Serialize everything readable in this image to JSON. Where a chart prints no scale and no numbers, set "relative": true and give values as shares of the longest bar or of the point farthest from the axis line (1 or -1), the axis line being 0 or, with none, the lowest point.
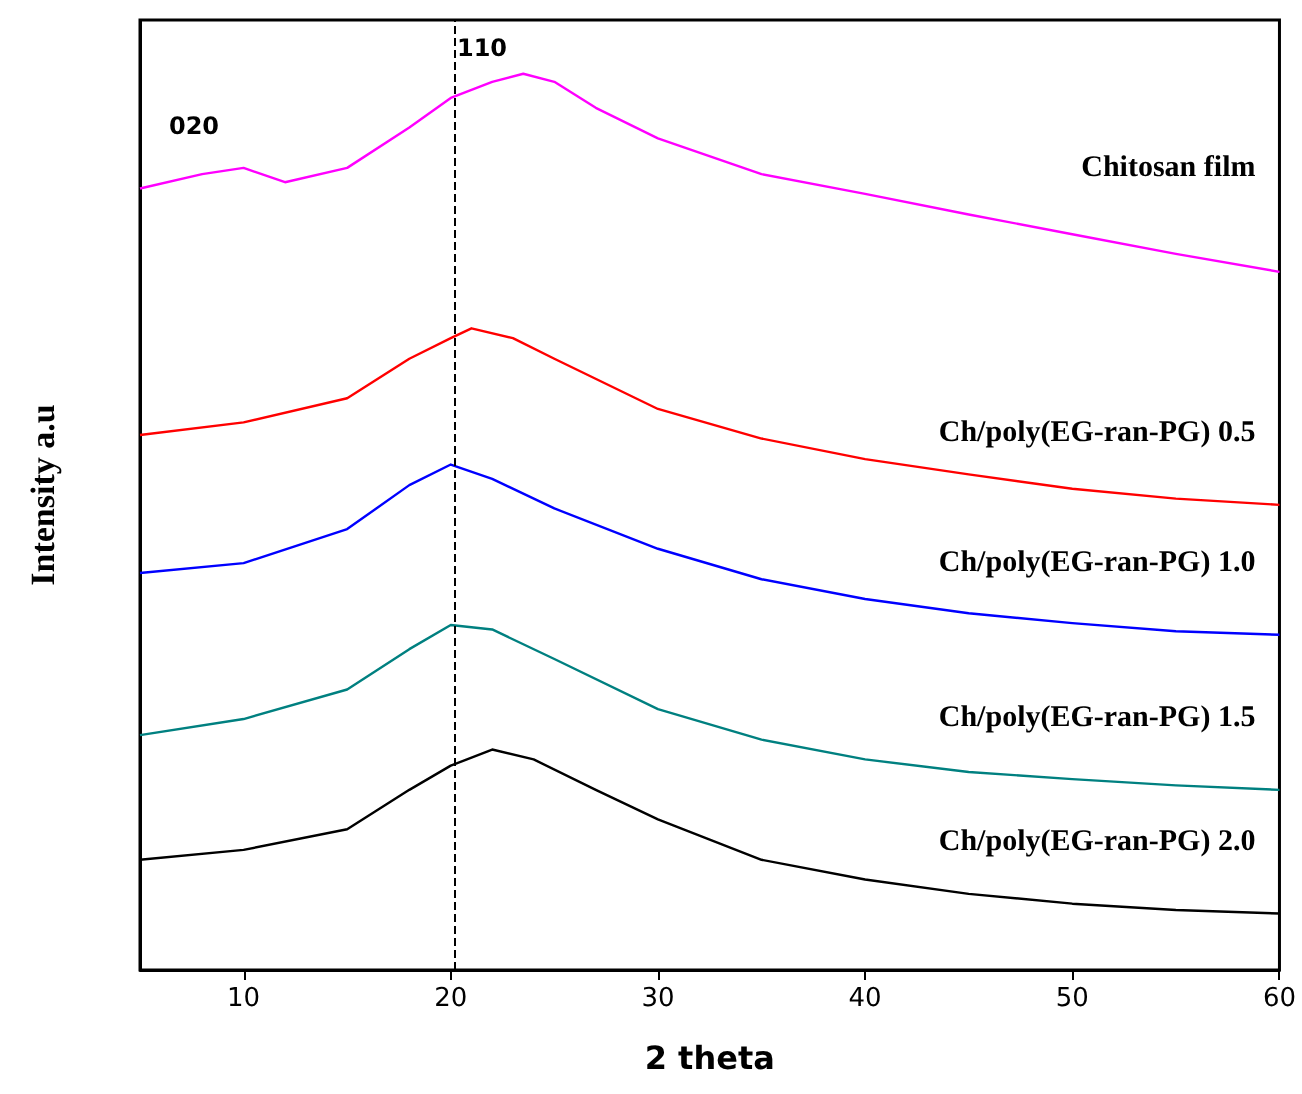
{
  "chart_data": {
    "type": "line",
    "relative": true,
    "xlabel": "2 theta",
    "ylabel": "Intensity a.u",
    "xlim": [
      5,
      60
    ],
    "xticks": [
      10,
      20,
      30,
      40,
      50,
      60
    ],
    "tick_labels": "x",
    "grid": false,
    "marker": "none",
    "line_style": "solid",
    "series": [
      {
        "name": "Chitosan film",
        "color": "#ff00ff",
        "x": [
          5,
          8,
          10,
          12,
          15,
          18,
          20,
          22,
          23.5,
          25,
          27,
          30,
          35,
          40,
          45,
          50,
          55,
          60
        ],
        "values": [
          0.872,
          0.888,
          0.895,
          0.879,
          0.895,
          0.94,
          0.973,
          0.991,
          1.0,
          0.991,
          0.962,
          0.928,
          0.888,
          0.866,
          0.843,
          0.821,
          0.799,
          0.779
        ]
      },
      {
        "name": "Ch/poly(EG-ran-PG) 0.5",
        "color": "#ff0000",
        "x": [
          5,
          10,
          15,
          18,
          20,
          21,
          23,
          25,
          30,
          35,
          40,
          45,
          50,
          55,
          60
        ],
        "values": [
          0.597,
          0.611,
          0.638,
          0.682,
          0.705,
          0.716,
          0.705,
          0.682,
          0.626,
          0.593,
          0.57,
          0.553,
          0.537,
          0.526,
          0.519
        ]
      },
      {
        "name": "Ch/poly(EG-ran-PG) 1.0",
        "color": "#0000ff",
        "x": [
          5,
          10,
          15,
          18,
          20,
          22,
          25,
          30,
          35,
          40,
          45,
          50,
          55,
          60
        ],
        "values": [
          0.443,
          0.454,
          0.492,
          0.541,
          0.564,
          0.548,
          0.515,
          0.47,
          0.436,
          0.414,
          0.398,
          0.387,
          0.378,
          0.374
        ]
      },
      {
        "name": "Ch/poly(EG-ran-PG) 1.5",
        "color": "#008080",
        "x": [
          5,
          10,
          15,
          18,
          20,
          22,
          25,
          30,
          35,
          40,
          45,
          50,
          55,
          60
        ],
        "values": [
          0.262,
          0.28,
          0.313,
          0.358,
          0.385,
          0.38,
          0.347,
          0.291,
          0.257,
          0.235,
          0.221,
          0.213,
          0.206,
          0.201
        ]
      },
      {
        "name": "Ch/poly(EG-ran-PG) 2.0",
        "color": "#000000",
        "x": [
          5,
          10,
          15,
          18,
          20,
          22,
          24,
          27,
          30,
          35,
          40,
          45,
          50,
          55,
          60
        ],
        "values": [
          0.123,
          0.134,
          0.157,
          0.201,
          0.228,
          0.246,
          0.235,
          0.201,
          0.168,
          0.123,
          0.101,
          0.085,
          0.074,
          0.067,
          0.063
        ]
      }
    ],
    "annotations": [
      "020",
      "110"
    ],
    "ref_lines": [
      {
        "axis": "x",
        "value": 20.2,
        "line_style": "dashed",
        "color": "#000000"
      }
    ]
  }
}
